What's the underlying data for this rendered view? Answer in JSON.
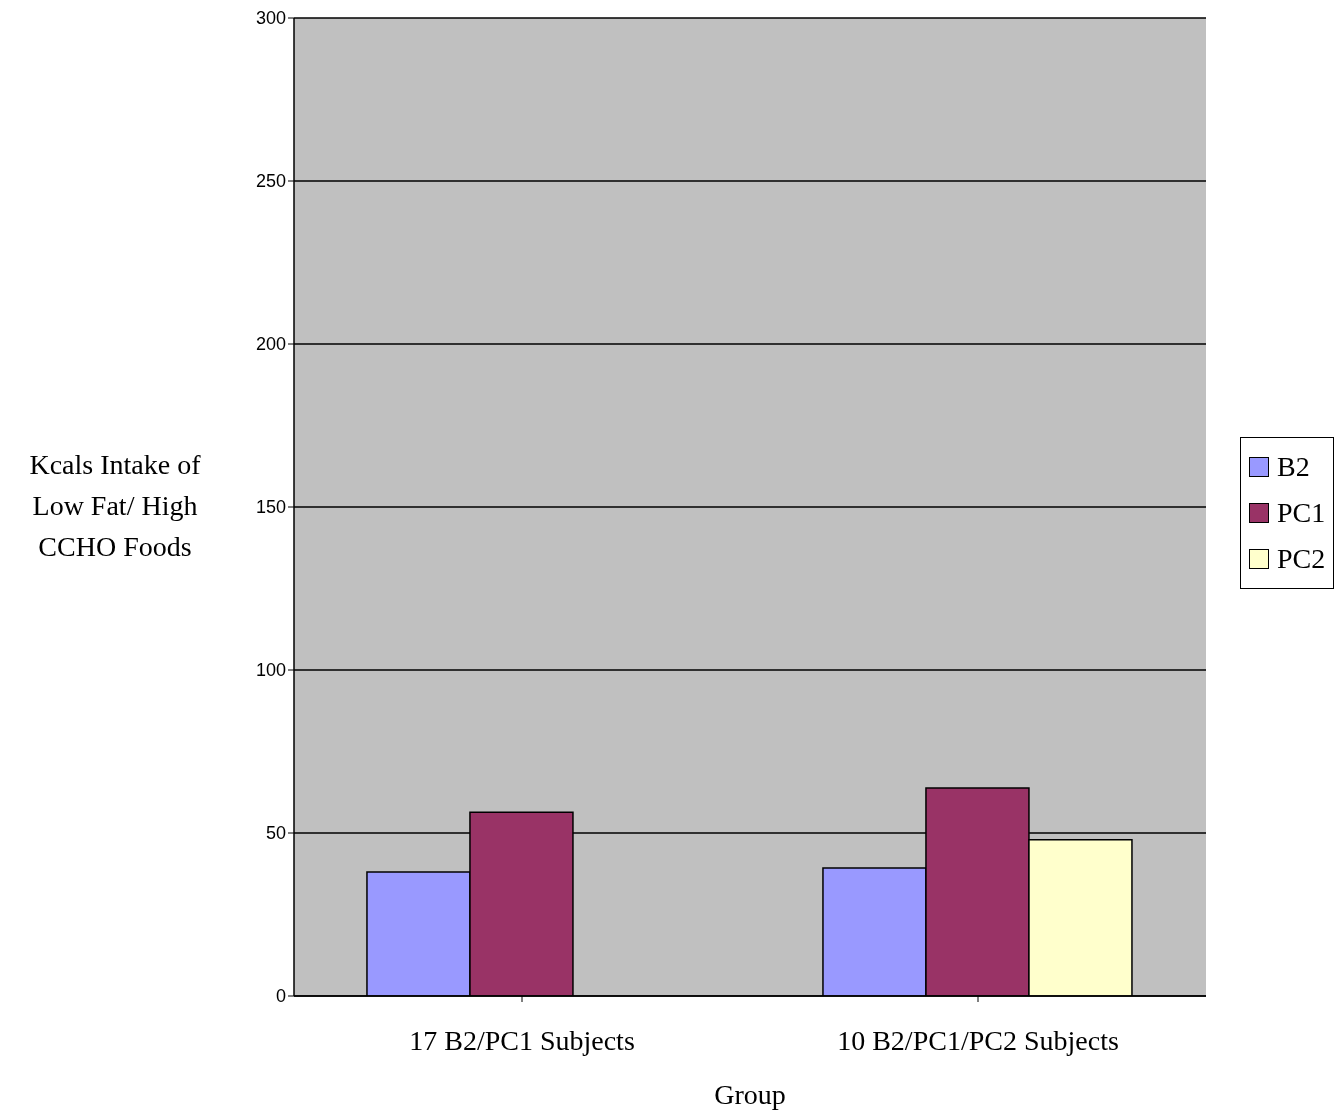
{
  "chart_data": {
    "type": "bar",
    "xlabel": "Group",
    "ylabel": "Kcals Intake of Low Fat/ High CCHO Foods",
    "categories": [
      "17 B2/PC1 Subjects",
      "10 B2/PC1/PC2 Subjects"
    ],
    "series": [
      {
        "name": "B2",
        "color": "#9999ff",
        "values": [
          38,
          39.3
        ]
      },
      {
        "name": "PC1",
        "color": "#993366",
        "values": [
          56.4,
          63.8
        ]
      },
      {
        "name": "PC2",
        "color": "#ffffcc",
        "values": [
          null,
          47.9
        ]
      }
    ],
    "ylim": [
      0,
      300
    ],
    "yticks": [
      0,
      50,
      100,
      150,
      200,
      250,
      300
    ],
    "grid": "y",
    "legend": "right"
  }
}
